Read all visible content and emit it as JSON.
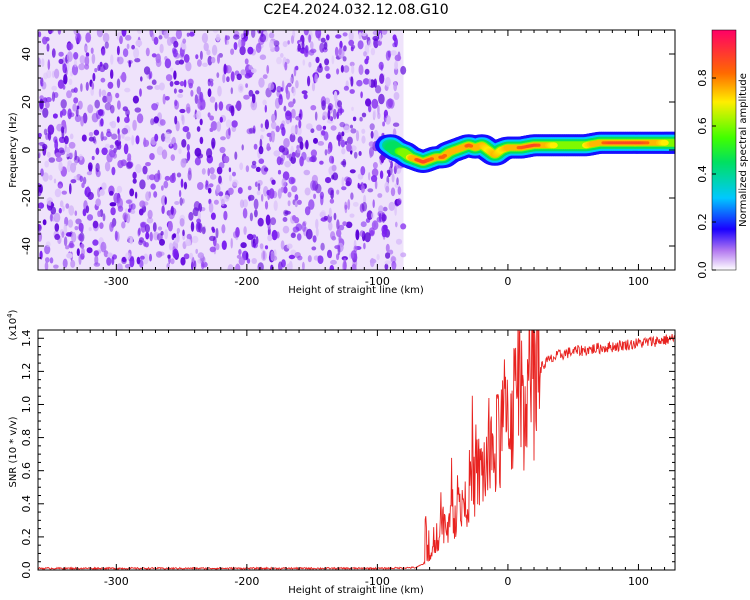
{
  "figure_title": "C2E4.2024.032.12.08.G10",
  "colors": {
    "snr_line": "#e8221f",
    "spectrogram_noise": "#7a14e6",
    "frame": "#000000"
  },
  "chart_data": [
    {
      "type": "heatmap",
      "name": "spectrogram",
      "title": "",
      "xlabel": "Height of straight line (km)",
      "ylabel": "Frequency (Hz)",
      "xlim": [
        -360,
        128
      ],
      "ylim": [
        -50,
        50
      ],
      "x_ticks": [
        -300,
        -200,
        -100,
        0,
        100
      ],
      "y_ticks": [
        -40,
        -20,
        0,
        20,
        40
      ],
      "noise_region_x": [
        -360,
        -80
      ],
      "signal_track": {
        "x": [
          -90,
          -85,
          -80,
          -75,
          -70,
          -65,
          -60,
          -55,
          -50,
          -45,
          -40,
          -35,
          -30,
          -25,
          -20,
          -15,
          -10,
          -5,
          0,
          10,
          20,
          30,
          40,
          50,
          60,
          70,
          80,
          90,
          100,
          110,
          120,
          128
        ],
        "frequency": [
          2,
          0,
          -1,
          -3,
          -4,
          -5,
          -4,
          -3,
          -3,
          -1,
          0,
          1,
          2,
          1,
          2,
          0,
          -2,
          0,
          1,
          1,
          2,
          2,
          2,
          2,
          2,
          3,
          3,
          3,
          3,
          3,
          3,
          3
        ],
        "amplitude": [
          0.4,
          0.5,
          0.6,
          0.7,
          0.85,
          0.9,
          0.85,
          0.8,
          0.85,
          0.8,
          0.75,
          0.8,
          0.85,
          0.8,
          0.75,
          0.7,
          0.75,
          0.7,
          0.75,
          0.85,
          0.9,
          0.75,
          0.65,
          0.65,
          0.7,
          0.8,
          0.9,
          0.95,
          0.9,
          0.8,
          0.7,
          0.65
        ]
      },
      "colorbar": {
        "label": "Normalized spectral amplitude",
        "range": [
          0.0,
          1.0
        ],
        "ticks": [
          "0.0",
          "0.2",
          "0.4",
          "0.6",
          "0.8"
        ],
        "tick_values": [
          0.0,
          0.2,
          0.4,
          0.6,
          0.8
        ]
      }
    },
    {
      "type": "line",
      "name": "snr",
      "title": "",
      "xlabel": "Height of straight line (km)",
      "ylabel": "SNR (10 * v/v)",
      "y_multiplier": "(x10",
      "y_multiplier_exp": "4",
      "y_multiplier_close": ")",
      "xlim": [
        -360,
        128
      ],
      "ylim": [
        0.0,
        1.45
      ],
      "x_ticks": [
        -300,
        -200,
        -100,
        0,
        100
      ],
      "y_ticks": [
        "0.0",
        "0.2",
        "0.4",
        "0.6",
        "0.8",
        "1.0",
        "1.2",
        "1.4"
      ],
      "y_tick_values": [
        0.0,
        0.2,
        0.4,
        0.6,
        0.8,
        1.0,
        1.2,
        1.4
      ],
      "series": [
        {
          "name": "SNR",
          "x": [
            -360,
            -250,
            -150,
            -95,
            -70,
            -62,
            -55,
            -50,
            -45,
            -40,
            -35,
            -30,
            -25,
            -20,
            -15,
            -10,
            -5,
            0,
            5,
            10,
            15,
            20,
            25,
            30,
            35,
            40,
            50,
            60,
            70,
            80,
            90,
            100,
            110,
            120,
            128
          ],
          "y": [
            0.01,
            0.01,
            0.01,
            0.01,
            0.015,
            0.05,
            0.15,
            0.3,
            0.25,
            0.35,
            0.4,
            0.5,
            0.55,
            0.6,
            0.65,
            0.7,
            0.85,
            0.95,
            1.0,
            1.05,
            1.12,
            1.18,
            1.22,
            1.26,
            1.28,
            1.3,
            1.32,
            1.33,
            1.34,
            1.35,
            1.36,
            1.37,
            1.38,
            1.39,
            1.4
          ]
        }
      ]
    }
  ]
}
